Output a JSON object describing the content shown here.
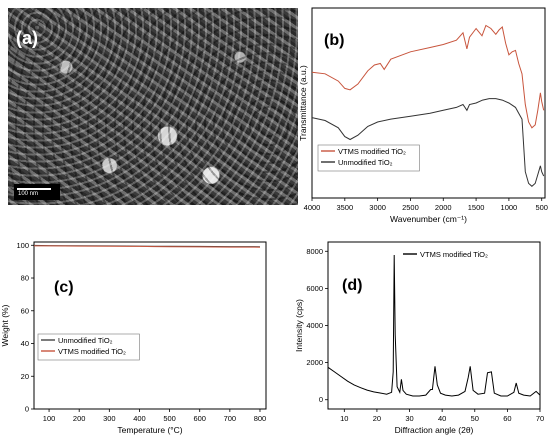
{
  "panel_a": {
    "label": "(a)",
    "scale_bar_text": "100 nm"
  },
  "chart_data": [
    {
      "id": "b",
      "type": "line",
      "panel_label": "(b)",
      "xlabel": "Wavenumber (cm⁻¹)",
      "ylabel": "Transmittance (a.u.)",
      "xlim": [
        4000,
        450
      ],
      "x_reversed": true,
      "xticks": [
        4000,
        3500,
        3000,
        2500,
        2000,
        1500,
        1000,
        500
      ],
      "yticks_shown": false,
      "legend_position": "bottom-left",
      "series": [
        {
          "name": "VTMS modified TiO₂",
          "color": "#c8553d",
          "x": [
            4000,
            3800,
            3600,
            3500,
            3420,
            3300,
            3150,
            3050,
            2960,
            2900,
            2800,
            2500,
            2200,
            2000,
            1800,
            1700,
            1640,
            1600,
            1500,
            1410,
            1350,
            1275,
            1200,
            1150,
            1100,
            1050,
            1000,
            950,
            900,
            850,
            800,
            750,
            700,
            650,
            600,
            560,
            520,
            500,
            470
          ],
          "y": [
            0.56,
            0.55,
            0.5,
            0.45,
            0.44,
            0.48,
            0.57,
            0.61,
            0.62,
            0.58,
            0.65,
            0.7,
            0.73,
            0.75,
            0.78,
            0.83,
            0.72,
            0.8,
            0.86,
            0.81,
            0.88,
            0.86,
            0.82,
            0.85,
            0.87,
            0.76,
            0.68,
            0.7,
            0.71,
            0.62,
            0.55,
            0.34,
            0.22,
            0.18,
            0.2,
            0.3,
            0.42,
            0.36,
            0.3
          ]
        },
        {
          "name": "Unmodified TiO₂",
          "color": "#333333",
          "x": [
            4000,
            3800,
            3600,
            3500,
            3420,
            3300,
            3150,
            3000,
            2800,
            2500,
            2200,
            2000,
            1800,
            1700,
            1640,
            1600,
            1500,
            1400,
            1300,
            1200,
            1100,
            1000,
            900,
            850,
            800,
            750,
            700,
            650,
            600,
            560,
            520,
            500,
            470
          ],
          "y": [
            0.25,
            0.23,
            0.18,
            0.12,
            0.1,
            0.13,
            0.19,
            0.22,
            0.24,
            0.26,
            0.28,
            0.3,
            0.32,
            0.34,
            0.3,
            0.34,
            0.35,
            0.37,
            0.38,
            0.38,
            0.37,
            0.35,
            0.32,
            0.28,
            0.24,
            -0.12,
            -0.2,
            -0.22,
            -0.2,
            -0.14,
            -0.08,
            -0.12,
            -0.15
          ]
        }
      ]
    },
    {
      "id": "c",
      "type": "line",
      "panel_label": "(c)",
      "xlabel": "Temperature (°C)",
      "ylabel": "Weight (%)",
      "xlim": [
        50,
        820
      ],
      "ylim": [
        0,
        102
      ],
      "xticks": [
        100,
        200,
        300,
        400,
        500,
        600,
        700,
        800
      ],
      "yticks": [
        0,
        20,
        40,
        60,
        80,
        100
      ],
      "legend_position": "lower-left",
      "series": [
        {
          "name": "Unmodified TiO₂",
          "color": "#444444",
          "x": [
            50,
            100,
            200,
            300,
            400,
            450,
            500,
            600,
            700,
            800
          ],
          "y": [
            99.9,
            99.8,
            99.7,
            99.6,
            99.5,
            99.4,
            99.4,
            99.3,
            99.2,
            99.1
          ]
        },
        {
          "name": "VTMS modified TiO₂",
          "color": "#c8553d",
          "x": [
            50,
            100,
            200,
            300,
            400,
            450,
            500,
            600,
            700,
            800
          ],
          "y": [
            99.6,
            99.6,
            99.5,
            99.4,
            99.3,
            99.2,
            99.1,
            99.0,
            98.9,
            98.8
          ]
        }
      ]
    },
    {
      "id": "d",
      "type": "line",
      "panel_label": "(d)",
      "xlabel": "Diffraction angle (2θ)",
      "ylabel": "Intensity (cps)",
      "xlim": [
        5,
        70
      ],
      "ylim": [
        -500,
        8500
      ],
      "xticks": [
        10,
        20,
        30,
        40,
        50,
        60,
        70
      ],
      "yticks": [
        0,
        2000,
        4000,
        6000,
        8000
      ],
      "legend_position": "top-right",
      "series": [
        {
          "name": "VTMS modified TiO₂",
          "color": "#000000",
          "x": [
            5,
            7,
            9,
            11,
            13,
            15,
            17,
            19,
            21,
            23,
            24.5,
            25.0,
            25.3,
            25.6,
            26.2,
            27.0,
            27.5,
            28.0,
            29,
            31,
            33,
            35,
            36.5,
            37.0,
            37.8,
            38.5,
            39.5,
            41,
            43,
            45,
            47,
            48.0,
            48.6,
            49.5,
            51,
            53,
            53.9,
            55.1,
            56.0,
            58,
            60,
            62.0,
            62.7,
            63.5,
            65,
            67,
            68.8,
            70
          ],
          "y": [
            1750,
            1500,
            1250,
            1000,
            800,
            650,
            520,
            420,
            360,
            300,
            400,
            1500,
            7800,
            3500,
            700,
            400,
            1100,
            500,
            300,
            200,
            200,
            250,
            550,
            550,
            1800,
            800,
            350,
            250,
            200,
            250,
            450,
            1200,
            1800,
            500,
            300,
            350,
            1450,
            1500,
            350,
            200,
            200,
            400,
            900,
            350,
            250,
            200,
            450,
            250
          ]
        }
      ]
    }
  ]
}
